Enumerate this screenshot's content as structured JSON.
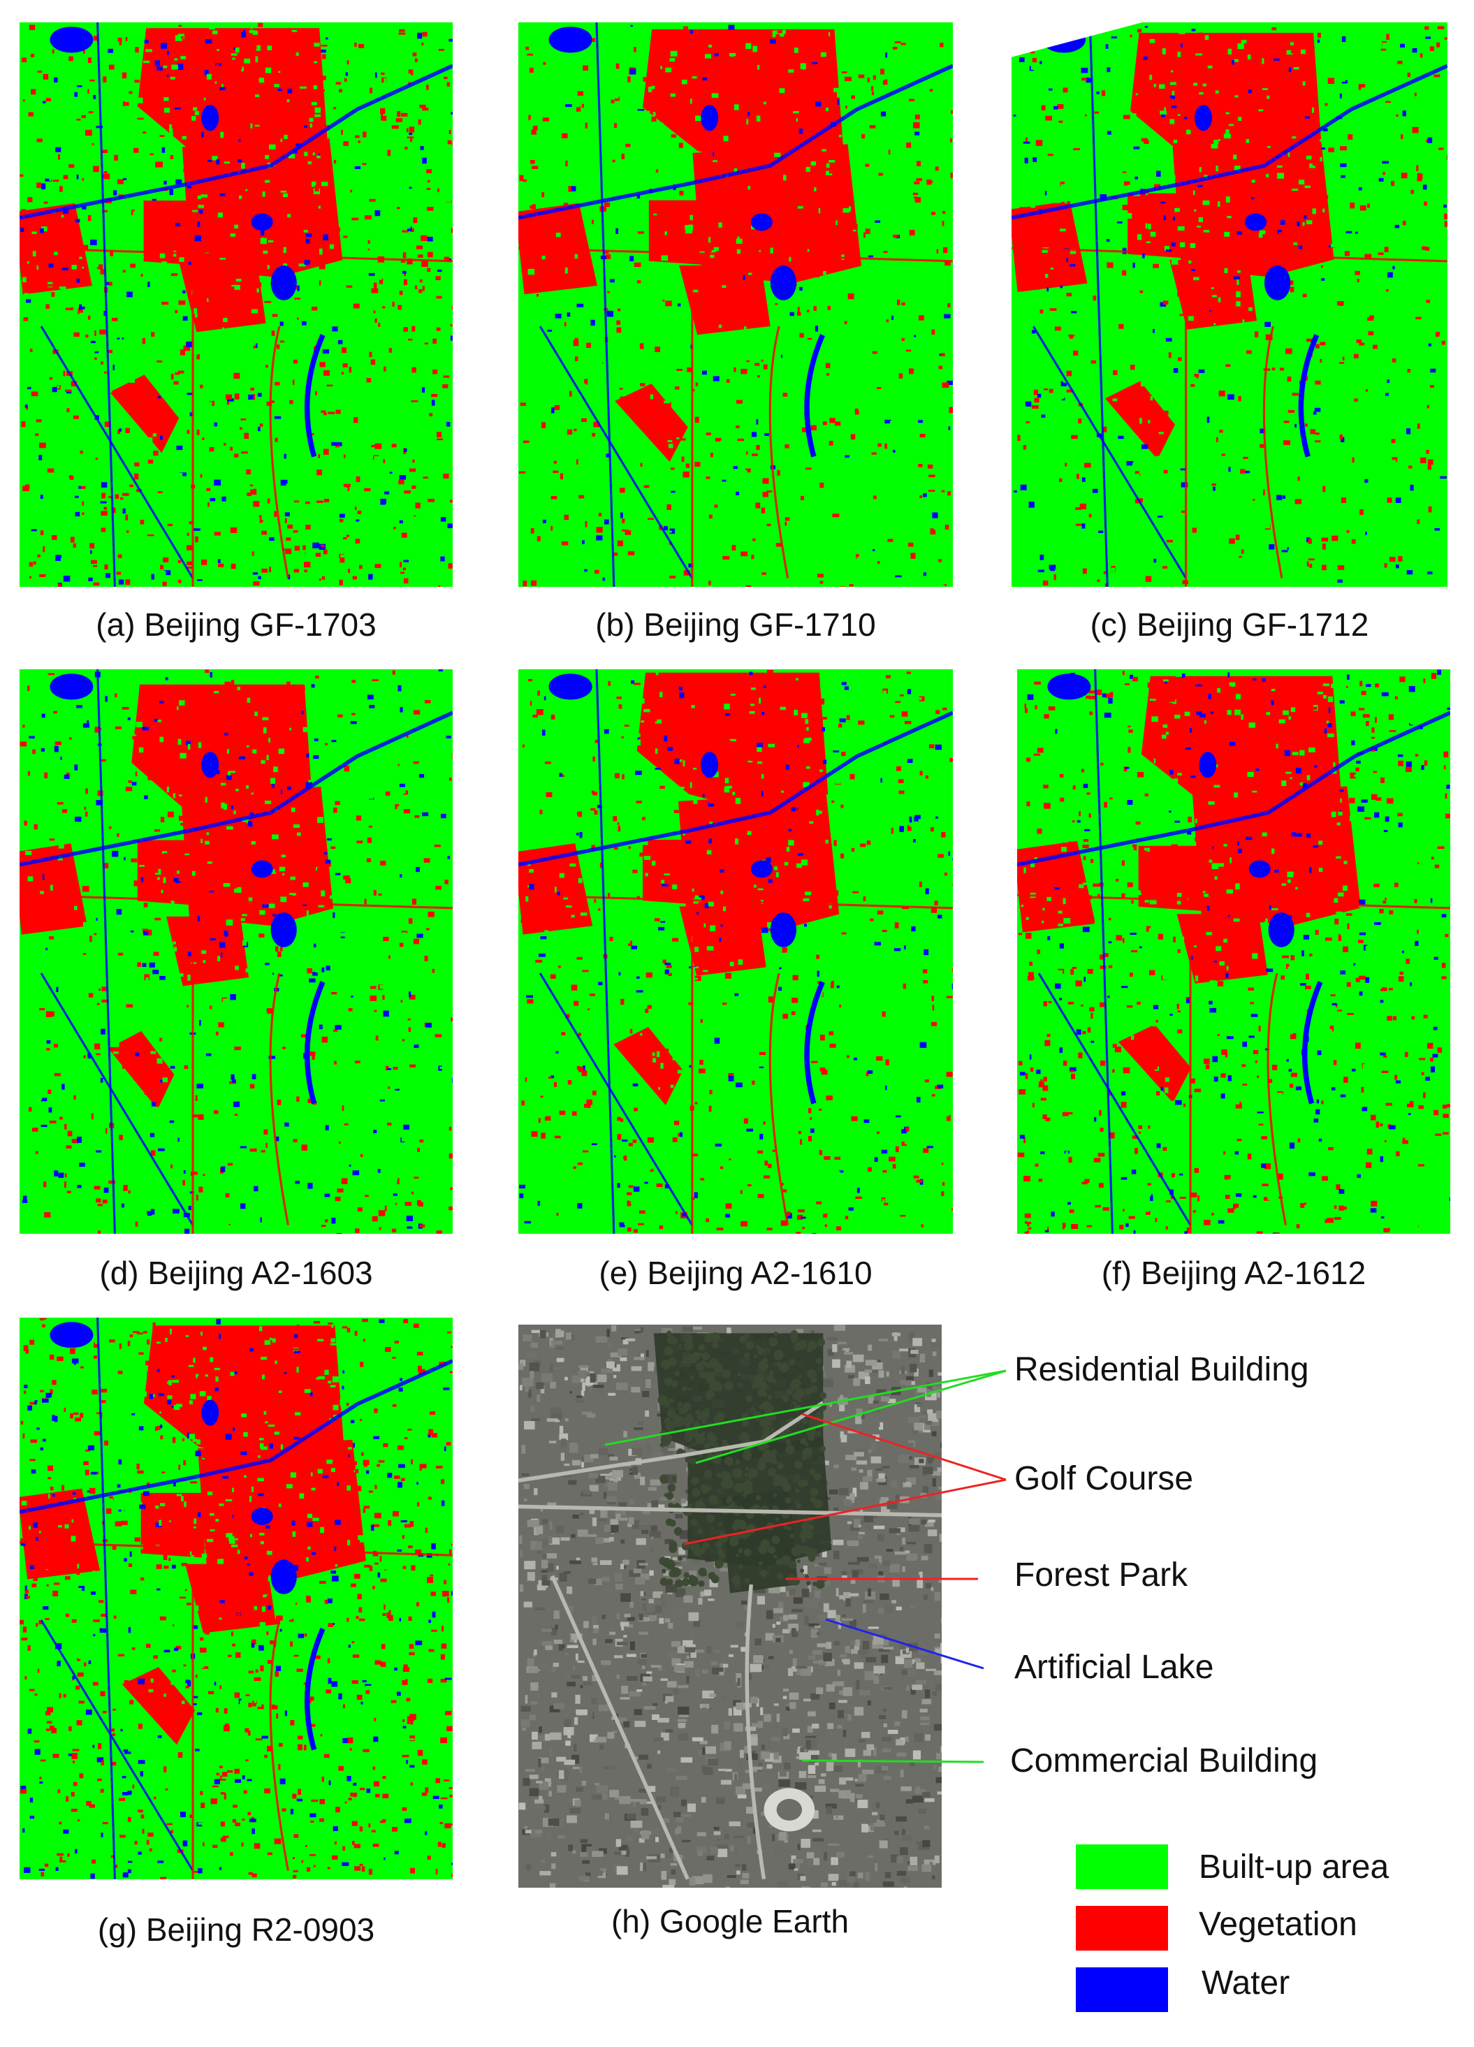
{
  "colors": {
    "built_up": "#00ff00",
    "vegetation": "#ff0000",
    "water": "#0000ff",
    "residential_line": "#22dd22",
    "golf_line": "#ee2222",
    "forest_line": "#ee2222",
    "lake_line": "#2222ee",
    "commercial_line": "#22dd22"
  },
  "panels": [
    {
      "id": "a",
      "caption": "(a) Beijing GF-1703"
    },
    {
      "id": "b",
      "caption": "(b) Beijing GF-1710"
    },
    {
      "id": "c",
      "caption": "(c) Beijing GF-1712"
    },
    {
      "id": "d",
      "caption": "(d) Beijing A2-1603"
    },
    {
      "id": "e",
      "caption": "(e) Beijing A2-1610"
    },
    {
      "id": "f",
      "caption": "(f) Beijing A2-1612"
    },
    {
      "id": "g",
      "caption": "(g) Beijing R2-0903"
    },
    {
      "id": "h",
      "caption": "(h) Google Earth"
    }
  ],
  "annotations": [
    {
      "label": "Residential Building"
    },
    {
      "label": "Golf Course"
    },
    {
      "label": "Forest Park"
    },
    {
      "label": "Artificial Lake"
    },
    {
      "label": "Commercial Building"
    }
  ],
  "legend": [
    {
      "label": "Built-up area"
    },
    {
      "label": "Vegetation"
    },
    {
      "label": "Water"
    }
  ]
}
